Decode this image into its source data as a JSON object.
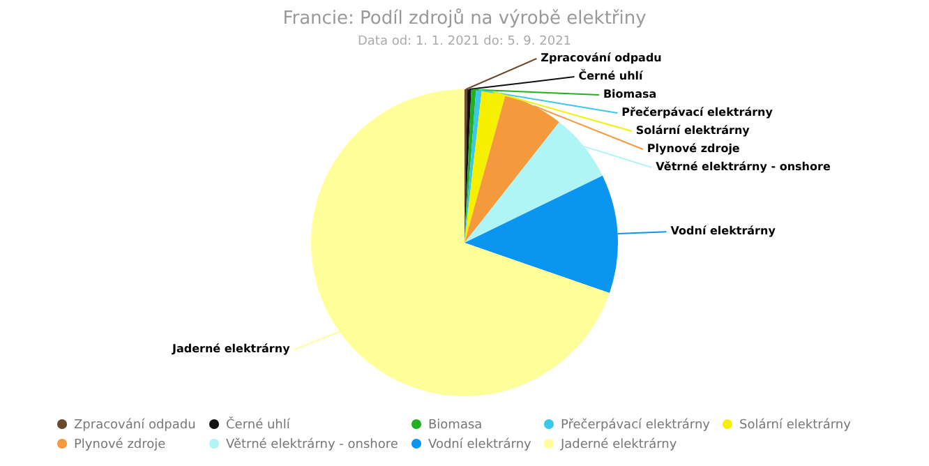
{
  "chart_data": {
    "type": "pie",
    "title": "Francie: Podíl zdrojů na výrobě elektřiny",
    "subtitle": "Data od: 1. 1. 2021 do: 5. 9. 2021",
    "categories": [
      "Zpracování odpadu",
      "Černé uhlí",
      "Biomasa",
      "Přečerpávací elektrárny",
      "Solární elektrárny",
      "Plynové zdroje",
      "Větrné elektrárny - onshore",
      "Vodní elektrárny",
      "Jaderné elektrárny"
    ],
    "values": [
      0.3,
      0.4,
      0.5,
      0.6,
      2.5,
      6.3,
      7.2,
      12.5,
      69.7
    ],
    "colors": [
      "#6b4a2b",
      "#111111",
      "#22b022",
      "#3cc8e8",
      "#f5f000",
      "#f59a3c",
      "#b0f5f5",
      "#0a96f0",
      "#ffff99"
    ],
    "legend": "bottom"
  }
}
